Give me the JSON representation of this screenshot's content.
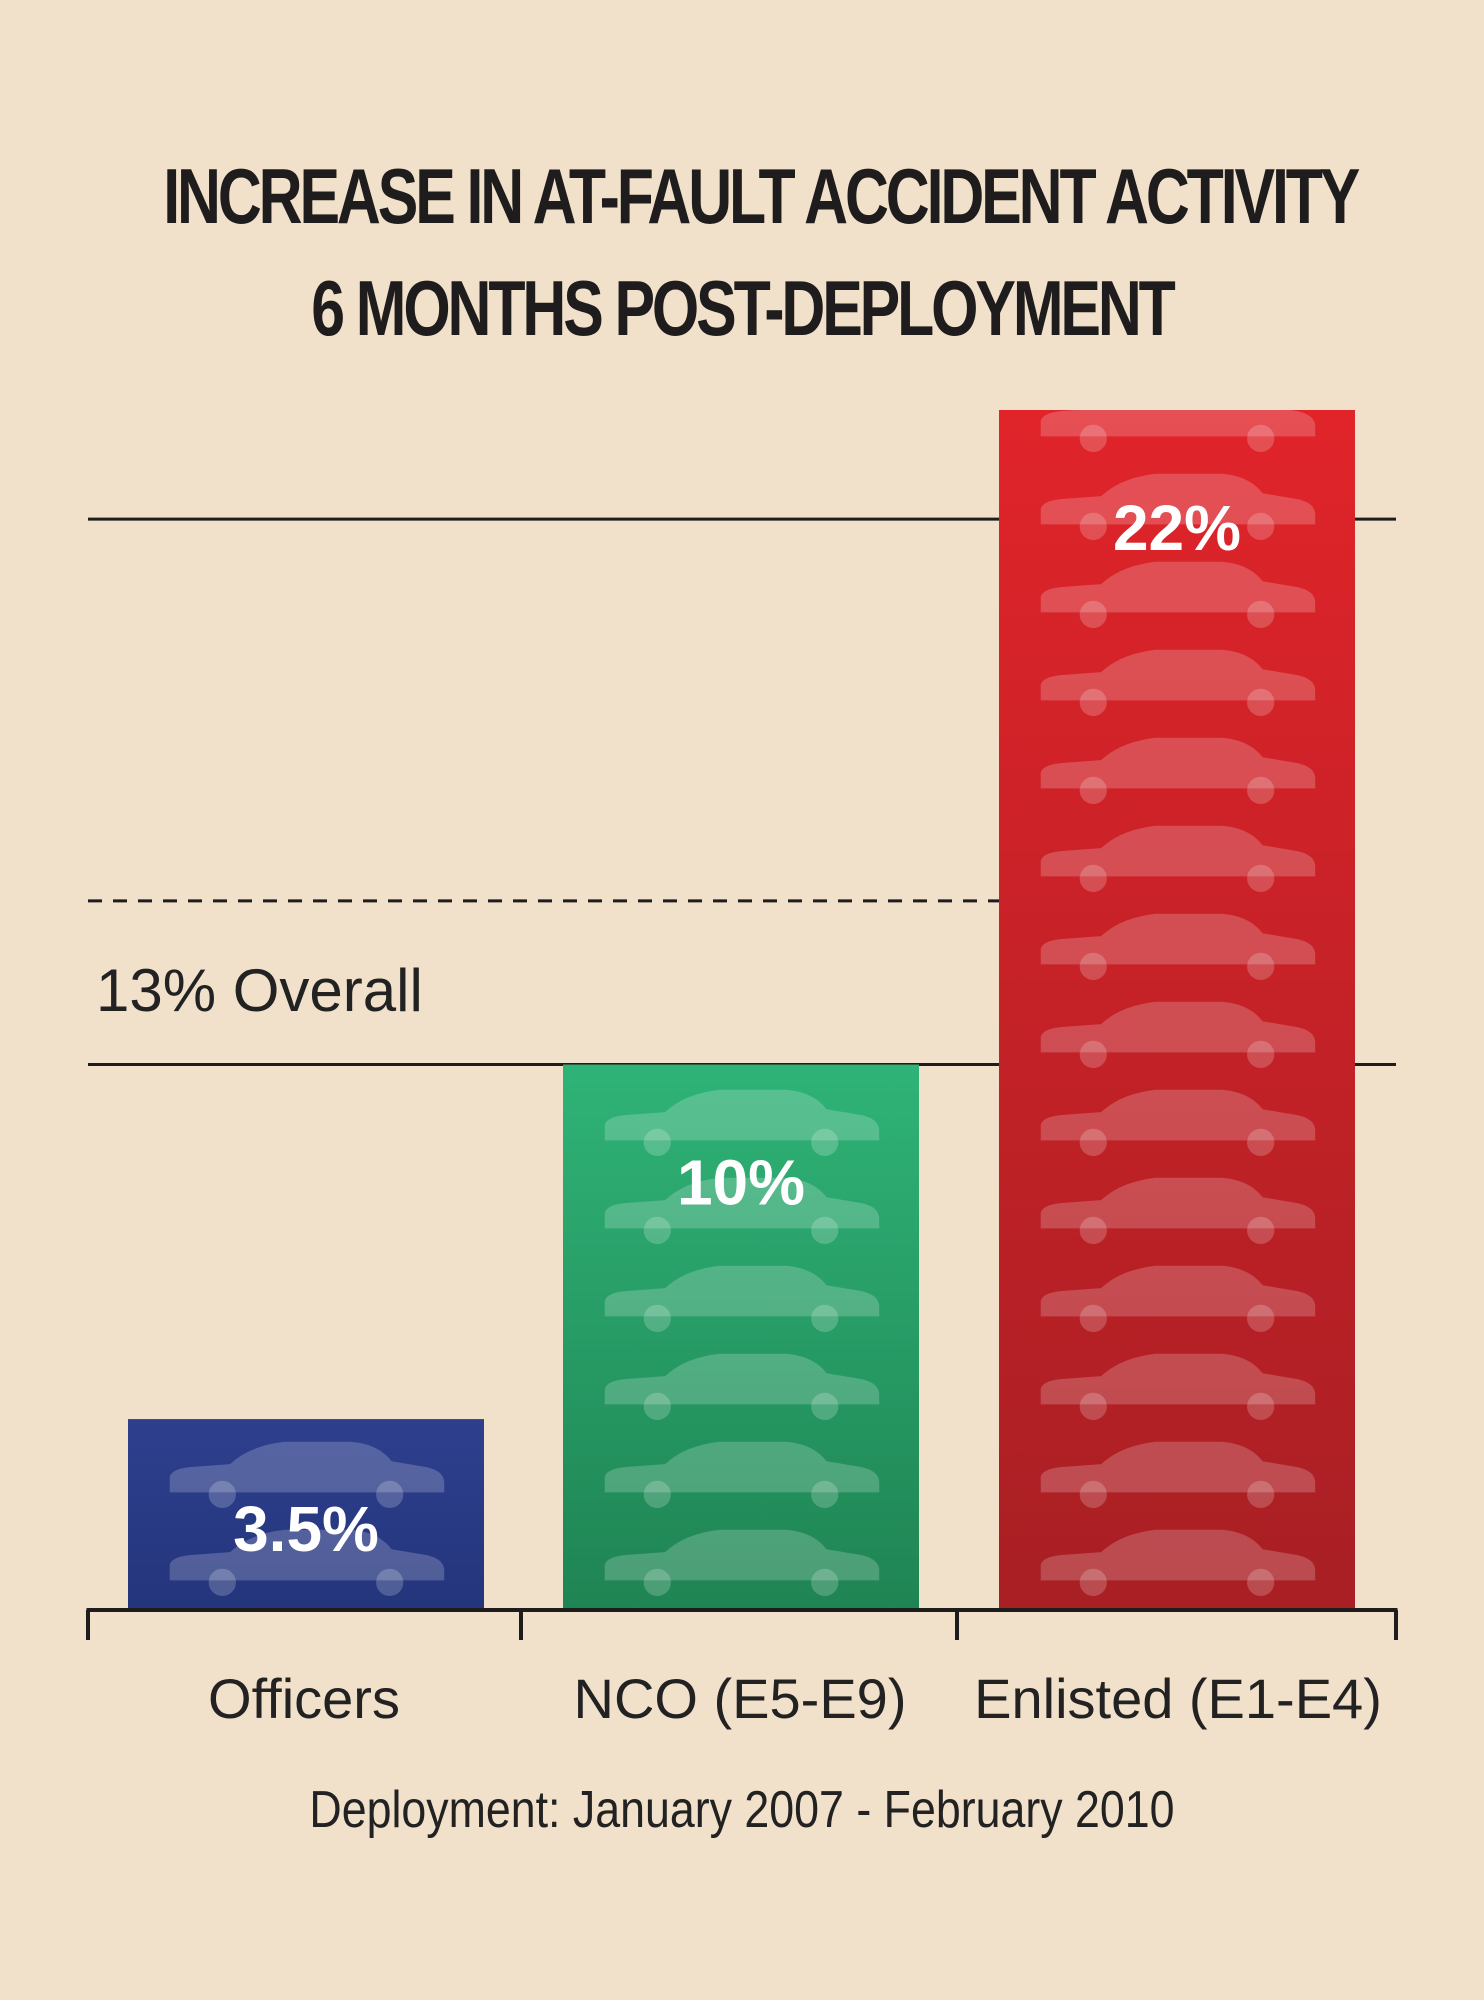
{
  "title": {
    "line1": "INCREASE IN AT-FAULT ACCIDENT ACTIVITY",
    "line2": "6 MONTHS POST-DEPLOYMENT"
  },
  "footnote": "Deployment: January 2007 - February 2010",
  "colors": {
    "background": "#f1e0ca",
    "officers": "#2a3a86",
    "nco": "#2a9e68",
    "enlisted": "#d0262a",
    "axis": "#1e1c1c"
  },
  "chart_data": {
    "type": "bar",
    "categories": [
      "Officers",
      "NCO (E5-E9)",
      "Enlisted (E1-E4)"
    ],
    "values": [
      3.5,
      10,
      22
    ],
    "value_labels": [
      "3.5%",
      "10%",
      "22%"
    ],
    "unit": "%",
    "ylim": [
      0,
      22
    ],
    "reference_line": {
      "value": 13,
      "label": "13% Overall",
      "style": "dashed"
    },
    "grid_values": [
      10,
      20
    ],
    "icon": "car-icon",
    "legend": "none"
  }
}
